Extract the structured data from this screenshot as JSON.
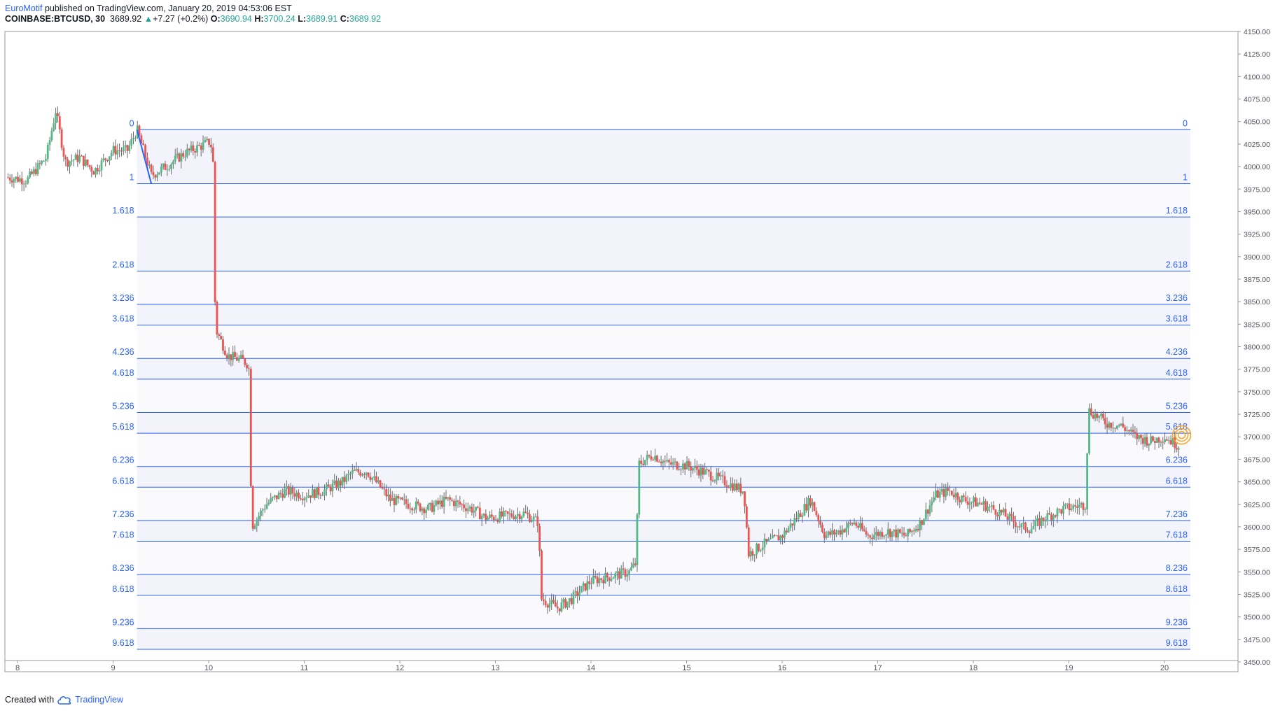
{
  "header": {
    "author": "EuroMotif",
    "published_text": " published on TradingView.com, January 20, 2019 04:53:06 EST",
    "symbol": "COINBASE:BTCUSD, 30",
    "last_price": "3689.92",
    "change": "+7.27 (+0.2%)",
    "open_label": "O:",
    "open": "3690.94",
    "high_label": "H:",
    "high": "3700.24",
    "low_label": "L:",
    "low": "3689.91",
    "close_label": "C:",
    "close": "3689.92"
  },
  "footer": {
    "created_with": "Created with",
    "brand": "TradingView"
  },
  "colors": {
    "up": "#26a69a",
    "up_candle": "#53b987",
    "down": "#ef5350",
    "fib_line": "#2962ff",
    "fib_fill": "#f3f4fb",
    "grid_border": "#9598a1",
    "target_marker": "#f5a623"
  },
  "icons": {
    "change_arrow": "triangle-up-icon",
    "footer_logo": "tradingview-cloud-icon",
    "target": "concentric-circles-icon"
  },
  "chart_data": {
    "type": "candlestick",
    "symbol": "COINBASE:BTCUSD",
    "interval": "30",
    "y_axis": {
      "min": 3450,
      "max": 4150,
      "ticks": [
        4150,
        4125,
        4100,
        4075,
        4050,
        4025,
        4000,
        3975,
        3950,
        3925,
        3900,
        3875,
        3850,
        3825,
        3800,
        3775,
        3750,
        3725,
        3700,
        3675,
        3650,
        3625,
        3600,
        3575,
        3550,
        3525,
        3500,
        3475,
        3450
      ],
      "tick_labels": [
        "4150.00",
        "4125.00",
        "4100.00",
        "4075.00",
        "4050.00",
        "4025.00",
        "4000.00",
        "3975.00",
        "3950.00",
        "3925.00",
        "3900.00",
        "3875.00",
        "3850.00",
        "3825.00",
        "3800.00",
        "3775.00",
        "3750.00",
        "3725.00",
        "3700.00",
        "3675.00",
        "3650.00",
        "3625.00",
        "3600.00",
        "3575.00",
        "3550.00",
        "3525.00",
        "3500.00",
        "3475.00",
        "3450.00"
      ]
    },
    "x_axis": {
      "min_day": 7.9,
      "max_day": 20.8,
      "ticks": [
        8,
        9,
        10,
        11,
        12,
        13,
        14,
        15,
        16,
        17,
        18,
        19,
        20
      ],
      "tick_labels": [
        "8",
        "9",
        "10",
        "11",
        "12",
        "13",
        "14",
        "15",
        "16",
        "17",
        "18",
        "19",
        "20"
      ]
    },
    "fib_extension": {
      "start_day": 9.25,
      "anchor_high": 4041,
      "anchor_low": 3981,
      "levels": [
        {
          "ratio": "0",
          "price": 4041
        },
        {
          "ratio": "1",
          "price": 3981
        },
        {
          "ratio": "1.618",
          "price": 3944
        },
        {
          "ratio": "2.618",
          "price": 3884
        },
        {
          "ratio": "3.236",
          "price": 3847
        },
        {
          "ratio": "3.618",
          "price": 3824
        },
        {
          "ratio": "4.236",
          "price": 3787
        },
        {
          "ratio": "4.618",
          "price": 3764
        },
        {
          "ratio": "5.236",
          "price": 3727
        },
        {
          "ratio": "5.618",
          "price": 3704
        },
        {
          "ratio": "6.236",
          "price": 3667
        },
        {
          "ratio": "6.618",
          "price": 3644
        },
        {
          "ratio": "7.236",
          "price": 3607
        },
        {
          "ratio": "7.618",
          "price": 3584
        },
        {
          "ratio": "8.236",
          "price": 3547
        },
        {
          "ratio": "8.618",
          "price": 3524
        },
        {
          "ratio": "9.236",
          "price": 3487
        },
        {
          "ratio": "9.618",
          "price": 3464
        }
      ]
    },
    "trend_line": {
      "from": {
        "day": 9.25,
        "price": 4041
      },
      "to": {
        "day": 9.4,
        "price": 3981
      }
    },
    "target_marker": {
      "day": 20.18,
      "price": 3702
    },
    "close_path": [
      [
        7.9,
        3988
      ],
      [
        8.1,
        3985
      ],
      [
        8.3,
        4010
      ],
      [
        8.4,
        4062
      ],
      [
        8.5,
        4005
      ],
      [
        8.65,
        4010
      ],
      [
        8.8,
        3995
      ],
      [
        9.0,
        4018
      ],
      [
        9.15,
        4018
      ],
      [
        9.25,
        4041
      ],
      [
        9.4,
        3990
      ],
      [
        9.55,
        4000
      ],
      [
        9.75,
        4015
      ],
      [
        9.9,
        4022
      ],
      [
        10.02,
        4028
      ],
      [
        10.05,
        4000
      ],
      [
        10.07,
        3820
      ],
      [
        10.2,
        3790
      ],
      [
        10.35,
        3785
      ],
      [
        10.42,
        3780
      ],
      [
        10.45,
        3600
      ],
      [
        10.6,
        3625
      ],
      [
        10.8,
        3640
      ],
      [
        11.0,
        3635
      ],
      [
        11.2,
        3640
      ],
      [
        11.4,
        3650
      ],
      [
        11.5,
        3660
      ],
      [
        11.65,
        3662
      ],
      [
        11.75,
        3650
      ],
      [
        11.9,
        3630
      ],
      [
        12.1,
        3625
      ],
      [
        12.3,
        3620
      ],
      [
        12.5,
        3630
      ],
      [
        12.75,
        3620
      ],
      [
        12.9,
        3610
      ],
      [
        13.1,
        3612
      ],
      [
        13.3,
        3615
      ],
      [
        13.45,
        3605
      ],
      [
        13.48,
        3520
      ],
      [
        13.65,
        3510
      ],
      [
        13.8,
        3520
      ],
      [
        14.0,
        3540
      ],
      [
        14.2,
        3545
      ],
      [
        14.4,
        3550
      ],
      [
        14.47,
        3560
      ],
      [
        14.5,
        3670
      ],
      [
        14.65,
        3680
      ],
      [
        14.8,
        3670
      ],
      [
        15.0,
        3668
      ],
      [
        15.2,
        3660
      ],
      [
        15.4,
        3650
      ],
      [
        15.6,
        3640
      ],
      [
        15.65,
        3570
      ],
      [
        15.8,
        3580
      ],
      [
        16.0,
        3590
      ],
      [
        16.15,
        3610
      ],
      [
        16.3,
        3630
      ],
      [
        16.45,
        3590
      ],
      [
        16.6,
        3595
      ],
      [
        16.75,
        3605
      ],
      [
        16.9,
        3590
      ],
      [
        17.1,
        3595
      ],
      [
        17.3,
        3590
      ],
      [
        17.45,
        3605
      ],
      [
        17.6,
        3635
      ],
      [
        17.75,
        3640
      ],
      [
        17.9,
        3630
      ],
      [
        18.1,
        3625
      ],
      [
        18.3,
        3615
      ],
      [
        18.5,
        3600
      ],
      [
        18.6,
        3598
      ],
      [
        18.75,
        3610
      ],
      [
        18.95,
        3620
      ],
      [
        19.18,
        3625
      ],
      [
        19.2,
        3730
      ],
      [
        19.4,
        3715
      ],
      [
        19.55,
        3712
      ],
      [
        19.7,
        3700
      ],
      [
        19.85,
        3695
      ],
      [
        20.0,
        3700
      ],
      [
        20.15,
        3690
      ]
    ]
  }
}
